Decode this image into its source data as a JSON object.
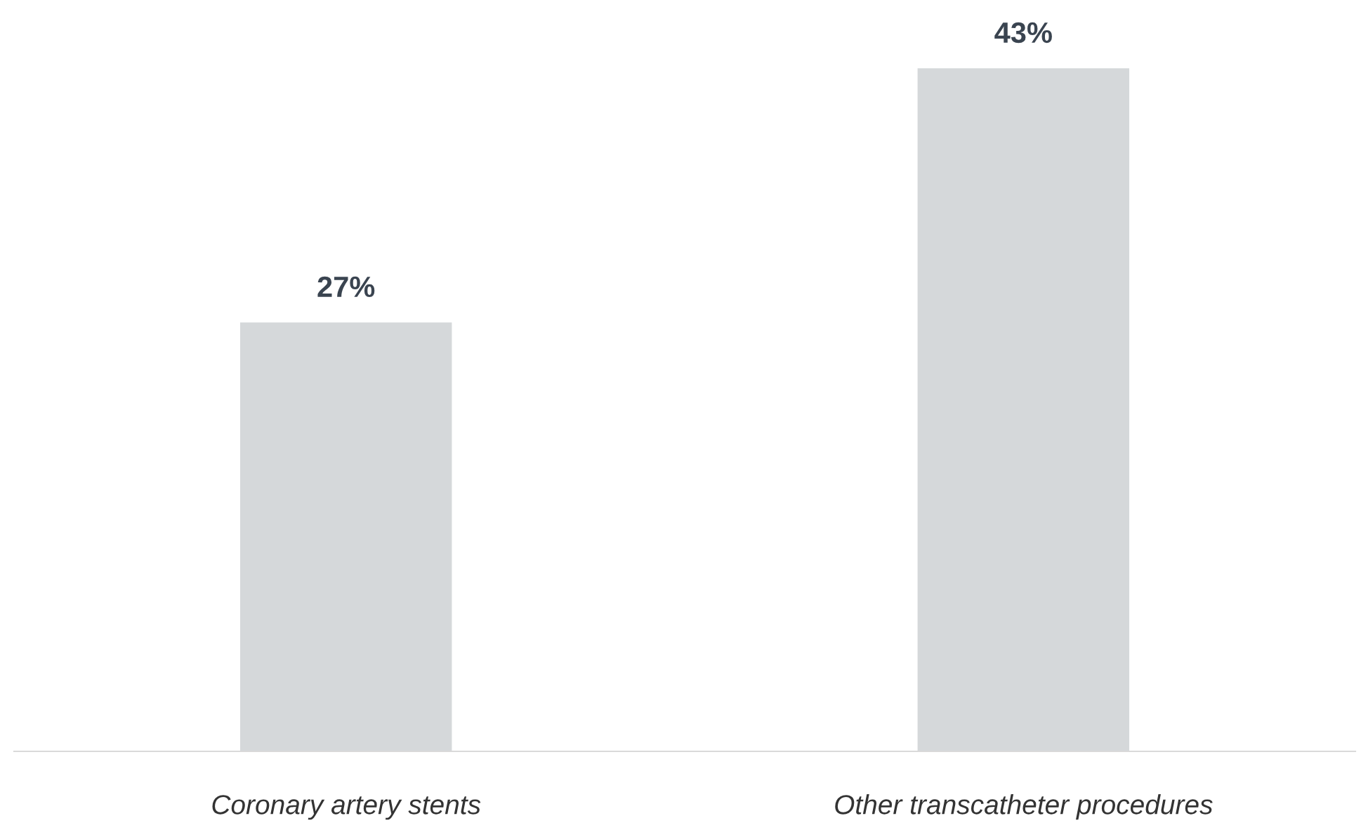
{
  "chart_data": {
    "type": "bar",
    "categories": [
      "Coronary artery stents",
      "Other transcatheter procedures"
    ],
    "values": [
      27,
      43
    ],
    "value_labels": [
      "27%",
      "43%"
    ],
    "color": "#d5d8da",
    "grid": false,
    "legend": false
  }
}
